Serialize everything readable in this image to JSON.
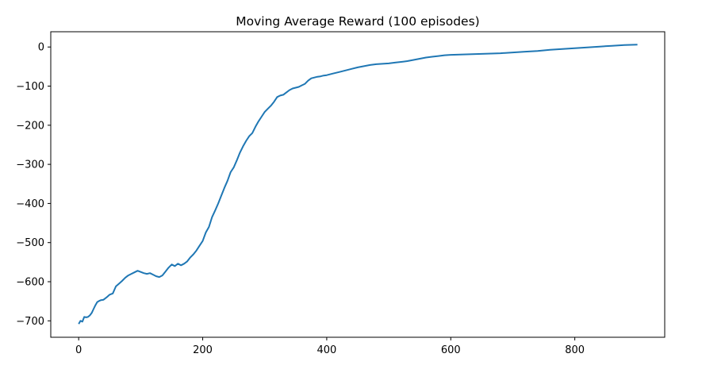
{
  "chart_data": {
    "type": "line",
    "title": "Moving Average Reward (100 episodes)",
    "xlabel": "",
    "ylabel": "",
    "xlim": [
      -45,
      945
    ],
    "ylim": [
      -742,
      39
    ],
    "xticks": [
      0,
      200,
      400,
      600,
      800
    ],
    "yticks": [
      0,
      -100,
      -200,
      -300,
      -400,
      -500,
      -600,
      -700
    ],
    "xtick_labels": [
      "0",
      "200",
      "400",
      "600",
      "800"
    ],
    "ytick_labels": [
      "0",
      "−100",
      "−200",
      "−300",
      "−400",
      "−500",
      "−600",
      "−700"
    ],
    "grid": false,
    "legend": null,
    "series": [
      {
        "name": "Moving Average Reward",
        "color": "#1f77b4",
        "x": [
          0,
          3,
          6,
          9,
          12,
          15,
          18,
          21,
          24,
          27,
          30,
          33,
          36,
          40,
          45,
          50,
          55,
          60,
          65,
          70,
          75,
          80,
          85,
          90,
          95,
          100,
          105,
          110,
          115,
          120,
          125,
          130,
          135,
          140,
          145,
          150,
          155,
          160,
          165,
          170,
          175,
          180,
          185,
          190,
          195,
          200,
          205,
          210,
          215,
          220,
          225,
          230,
          235,
          240,
          245,
          250,
          255,
          260,
          265,
          270,
          275,
          280,
          285,
          290,
          295,
          300,
          305,
          310,
          315,
          320,
          325,
          330,
          335,
          340,
          345,
          350,
          355,
          360,
          365,
          370,
          375,
          380,
          385,
          390,
          395,
          400,
          410,
          420,
          430,
          440,
          450,
          460,
          470,
          480,
          490,
          500,
          510,
          520,
          530,
          540,
          550,
          560,
          570,
          580,
          590,
          600,
          620,
          640,
          660,
          680,
          700,
          720,
          740,
          760,
          780,
          800,
          820,
          840,
          860,
          880,
          901
        ],
        "y": [
          -708,
          -700,
          -702,
          -690,
          -691,
          -690,
          -686,
          -680,
          -670,
          -660,
          -652,
          -649,
          -647,
          -646,
          -640,
          -633,
          -630,
          -612,
          -605,
          -598,
          -590,
          -584,
          -580,
          -576,
          -572,
          -575,
          -578,
          -580,
          -578,
          -582,
          -586,
          -588,
          -584,
          -574,
          -564,
          -556,
          -560,
          -554,
          -558,
          -554,
          -548,
          -538,
          -530,
          -520,
          -508,
          -496,
          -474,
          -460,
          -435,
          -418,
          -400,
          -380,
          -360,
          -342,
          -320,
          -308,
          -290,
          -270,
          -254,
          -240,
          -228,
          -220,
          -204,
          -190,
          -178,
          -166,
          -158,
          -150,
          -140,
          -128,
          -124,
          -122,
          -116,
          -110,
          -106,
          -104,
          -102,
          -98,
          -94,
          -86,
          -80,
          -78,
          -76,
          -75,
          -73,
          -72,
          -68,
          -64,
          -60,
          -56,
          -52,
          -49,
          -46,
          -44,
          -43,
          -42,
          -40,
          -38,
          -36,
          -33,
          -30,
          -27,
          -25,
          -23,
          -21,
          -20,
          -19,
          -18,
          -17,
          -16,
          -14,
          -12,
          -10,
          -7,
          -5,
          -3,
          -1,
          1,
          3,
          5,
          6
        ]
      }
    ]
  }
}
